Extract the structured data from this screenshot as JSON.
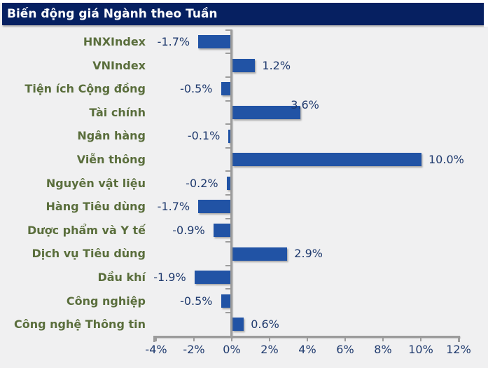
{
  "header": {
    "title": "Biến động giá Ngành theo Tuần"
  },
  "colors": {
    "title_bg": "#062061",
    "title_text": "#FFFFFF",
    "bar": "#2153A5",
    "category_text": "#5A6E3C",
    "value_text": "#1F3A6E",
    "axis": "#9C9C9C",
    "background": "#F0F0F1"
  },
  "chart_data": {
    "type": "bar",
    "orientation": "horizontal",
    "title": "Biến động giá Ngành theo Tuần",
    "categories": [
      "HNXIndex",
      "VNIndex",
      "Tiện ích Cộng đồng",
      "Tài chính",
      "Ngân hàng",
      "Viễn thông",
      "Nguyên vật liệu",
      "Hàng Tiêu dùng",
      "Dược phẩm và Y tế",
      "Dịch vụ Tiêu dùng",
      "Dầu khí",
      "Công nghiệp",
      "Công nghệ Thông tin"
    ],
    "values": [
      -1.7,
      1.2,
      -0.5,
      3.6,
      -0.1,
      10.0,
      -0.2,
      -1.7,
      -0.9,
      2.9,
      -1.9,
      -0.5,
      0.6
    ],
    "data_labels": [
      "-1.7%",
      "1.2%",
      "-0.5%",
      "3.6%",
      "-0.1%",
      "10.0%",
      "-0.2%",
      "-1.7%",
      "-0.9%",
      "2.9%",
      "-1.9%",
      "-0.5%",
      "0.6%"
    ],
    "label_offsets": {
      "3": {
        "dx": -24,
        "dy": -11
      }
    },
    "xlabel": "",
    "ylabel": "",
    "xlim": [
      -4,
      12
    ],
    "x_tick_values": [
      -4,
      -2,
      0,
      2,
      4,
      6,
      8,
      10,
      12
    ],
    "x_ticks": [
      "-4%",
      "-2%",
      "0%",
      "2%",
      "4%",
      "6%",
      "8%",
      "10%",
      "12%"
    ],
    "grid": false,
    "legend": "none"
  }
}
